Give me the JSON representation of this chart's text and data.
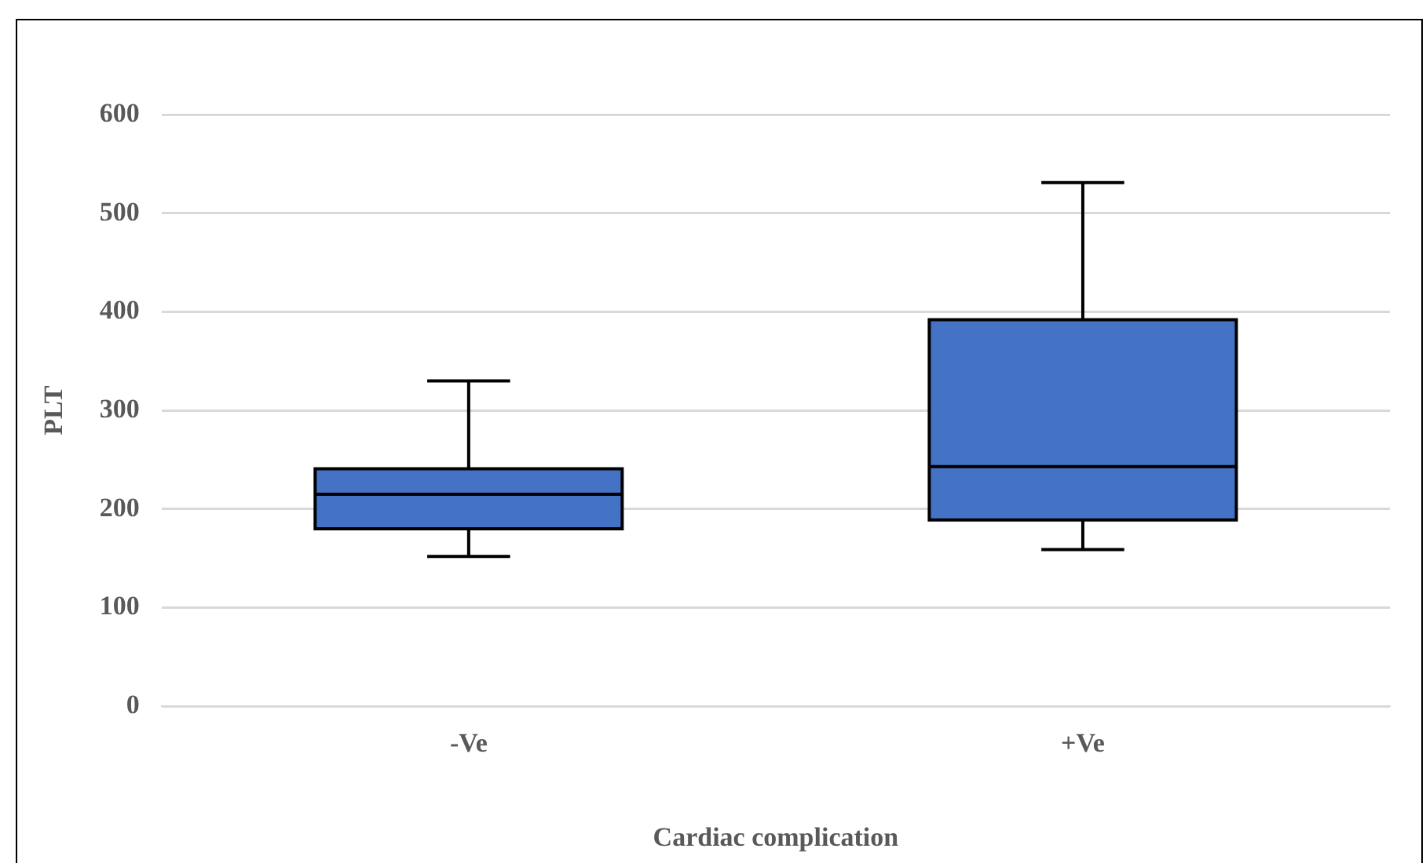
{
  "chart_data": {
    "type": "box",
    "xlabel": "Cardiac complication",
    "ylabel": "PLT",
    "categories": [
      "-Ve",
      "+Ve"
    ],
    "color": "#4472c4",
    "boxes": [
      {
        "low": 152,
        "q1": 180,
        "median": 215,
        "q3": 241,
        "high": 330
      },
      {
        "low": 159,
        "q1": 189,
        "median": 243,
        "q3": 392,
        "high": 531
      }
    ],
    "ylim": [
      0,
      600
    ],
    "yticks": [
      0,
      100,
      200,
      300,
      400,
      500,
      600
    ],
    "grid": "y",
    "legend": false
  }
}
